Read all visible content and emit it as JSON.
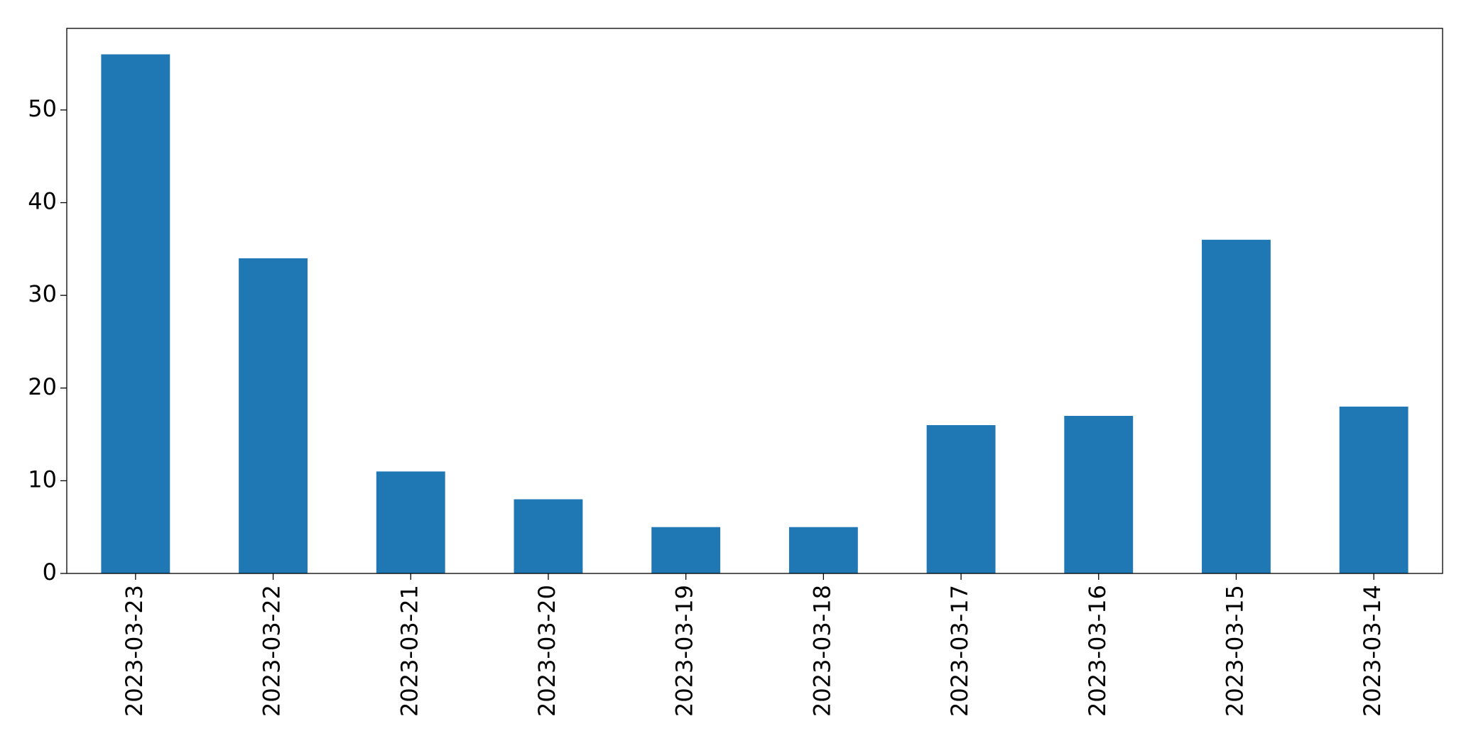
{
  "chart_data": {
    "type": "bar",
    "categories": [
      "2023-03-23",
      "2023-03-22",
      "2023-03-21",
      "2023-03-20",
      "2023-03-19",
      "2023-03-18",
      "2023-03-17",
      "2023-03-16",
      "2023-03-15",
      "2023-03-14"
    ],
    "values": [
      56,
      34,
      11,
      8,
      5,
      5,
      16,
      17,
      36,
      18
    ],
    "color": "#1f77b4",
    "ylim": [
      0,
      58.8
    ],
    "yticks": [
      0,
      10,
      20,
      30,
      40,
      50
    ],
    "grid": false
  }
}
